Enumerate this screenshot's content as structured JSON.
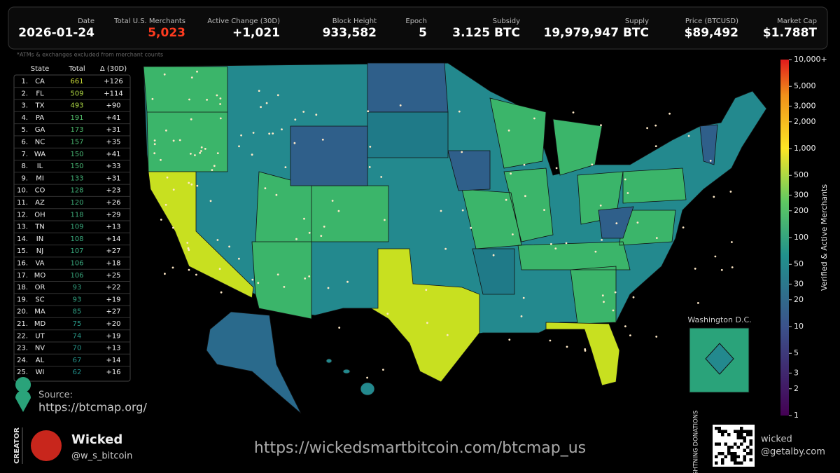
{
  "header": {
    "stats": [
      {
        "label": "Date",
        "value": "2026-01-24"
      },
      {
        "label": "Total U.S. Merchants",
        "value": "5,023"
      },
      {
        "label": "Active Change (30D)",
        "value": "+1,021"
      },
      {
        "label": "Block Height",
        "value": "933,582"
      },
      {
        "label": "Epoch",
        "value": "5"
      },
      {
        "label": "Subsidy",
        "value": "3.125 BTC"
      },
      {
        "label": "Supply",
        "value": "19,979,947 BTC"
      },
      {
        "label": "Price (BTCUSD)",
        "value": "$89,492"
      },
      {
        "label": "Market Cap",
        "value": "$1.788T"
      }
    ]
  },
  "note": "*ATMs & exchanges excluded from merchant counts",
  "table": {
    "columns": [
      "State",
      "Total",
      "Δ (30D)"
    ],
    "rows": [
      [
        "1.",
        "CA",
        661,
        "+126"
      ],
      [
        "2.",
        "FL",
        509,
        "+114"
      ],
      [
        "3.",
        "TX",
        493,
        "+90"
      ],
      [
        "4.",
        "PA",
        191,
        "+41"
      ],
      [
        "5.",
        "GA",
        173,
        "+31"
      ],
      [
        "6.",
        "NC",
        157,
        "+35"
      ],
      [
        "7.",
        "WA",
        150,
        "+41"
      ],
      [
        "8.",
        "IL",
        150,
        "+33"
      ],
      [
        "9.",
        "MI",
        133,
        "+31"
      ],
      [
        "10.",
        "CO",
        128,
        "+23"
      ],
      [
        "11.",
        "AZ",
        120,
        "+26"
      ],
      [
        "12.",
        "OH",
        118,
        "+29"
      ],
      [
        "13.",
        "TN",
        109,
        "+13"
      ],
      [
        "14.",
        "IN",
        108,
        "+14"
      ],
      [
        "15.",
        "NJ",
        107,
        "+27"
      ],
      [
        "16.",
        "VA",
        106,
        "+18"
      ],
      [
        "17.",
        "MO",
        106,
        "+25"
      ],
      [
        "18.",
        "OR",
        93,
        "+22"
      ],
      [
        "19.",
        "SC",
        93,
        "+19"
      ],
      [
        "20.",
        "MA",
        85,
        "+27"
      ],
      [
        "21.",
        "MD",
        75,
        "+20"
      ],
      [
        "22.",
        "UT",
        74,
        "+19"
      ],
      [
        "23.",
        "NV",
        70,
        "+13"
      ],
      [
        "24.",
        "AL",
        67,
        "+14"
      ],
      [
        "25.",
        "WI",
        62,
        "+16"
      ]
    ]
  },
  "source": {
    "label": "Source:",
    "url": "https://btcmap.org/"
  },
  "inset_title": "Washington D.C.",
  "colorbar": {
    "label": "Verified & Active Merchants",
    "scale": "log",
    "lim": [
      1,
      10000
    ],
    "ticks": [
      1,
      2,
      3,
      5,
      10,
      20,
      30,
      50,
      100,
      200,
      300,
      500,
      {
        "value": 1000,
        "label": "1,000"
      },
      {
        "value": 2000,
        "label": "2,000"
      },
      {
        "value": 3000,
        "label": "3,000"
      },
      {
        "value": 5000,
        "label": "5,000"
      },
      {
        "value": 10000,
        "label": "10,000+"
      }
    ]
  },
  "footer": {
    "creator_label": "CREATOR",
    "creator_name": "Wicked",
    "creator_handle": "@w_s_bitcoin",
    "url": "https://wickedsmartbitcoin.com/btcmap_us",
    "donation_label": "LIGHTNING DONATIONS",
    "donation_user": "wicked",
    "donation_domain": "@getalby.com"
  }
}
